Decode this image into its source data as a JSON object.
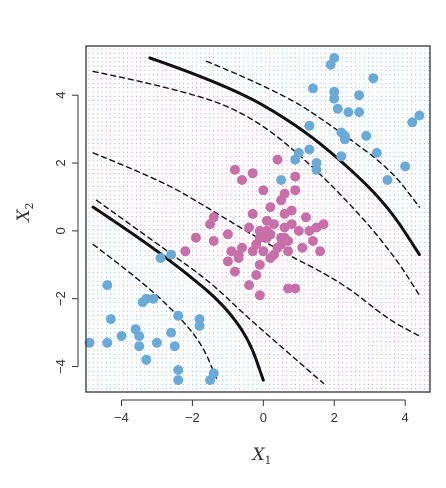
{
  "chart_data": {
    "type": "scatter",
    "title": "",
    "xlabel": "X",
    "xlabel_sub": "1",
    "ylabel": "X",
    "ylabel_sub": "2",
    "xlim": [
      -5.0,
      4.7
    ],
    "ylim": [
      -4.75,
      5.45
    ],
    "x_ticks": [
      -4,
      -2,
      0,
      2,
      4
    ],
    "y_ticks": [
      -4,
      -2,
      0,
      2,
      4
    ],
    "grid": "background dot lattice shaded by predicted class",
    "colors": {
      "blue": "#6aaad9",
      "pink": "#c86fa9",
      "line": "#111111",
      "frame": "#333333"
    },
    "series": [
      {
        "color": "blue",
        "points": [
          [
            -4.9,
            -3.3
          ],
          [
            -4.4,
            -1.6
          ],
          [
            -4.4,
            -3.3
          ],
          [
            -4.3,
            -2.6
          ],
          [
            -4.0,
            -3.1
          ],
          [
            -3.6,
            -2.9
          ],
          [
            -3.5,
            -3.1
          ],
          [
            -3.5,
            -3.4
          ],
          [
            -3.4,
            -2.1
          ],
          [
            -3.3,
            -2.0
          ],
          [
            -3.3,
            -3.8
          ],
          [
            -3.1,
            -2.0
          ],
          [
            -3.0,
            -3.3
          ],
          [
            -2.9,
            -0.8
          ],
          [
            -2.6,
            -0.7
          ],
          [
            -2.6,
            -3.0
          ],
          [
            -2.5,
            -3.4
          ],
          [
            -2.4,
            -2.5
          ],
          [
            -2.4,
            -4.1
          ],
          [
            -2.4,
            -4.4
          ],
          [
            -1.8,
            -2.6
          ],
          [
            -1.8,
            -2.8
          ],
          [
            -1.5,
            -4.4
          ],
          [
            -1.4,
            -4.2
          ],
          [
            0.5,
            1.5
          ],
          [
            0.9,
            2.1
          ],
          [
            1.0,
            2.3
          ],
          [
            1.3,
            2.4
          ],
          [
            1.3,
            3.1
          ],
          [
            1.4,
            4.2
          ],
          [
            1.5,
            2.0
          ],
          [
            1.5,
            1.8
          ],
          [
            1.9,
            4.9
          ],
          [
            2.0,
            5.1
          ],
          [
            2.0,
            3.9
          ],
          [
            2.0,
            4.1
          ],
          [
            2.1,
            3.6
          ],
          [
            2.2,
            2.9
          ],
          [
            2.2,
            2.2
          ],
          [
            2.3,
            2.7
          ],
          [
            2.3,
            2.8
          ],
          [
            2.4,
            3.5
          ],
          [
            2.7,
            3.5
          ],
          [
            2.7,
            4.0
          ],
          [
            2.9,
            2.8
          ],
          [
            3.1,
            4.5
          ],
          [
            3.2,
            2.3
          ],
          [
            3.5,
            1.5
          ],
          [
            4.0,
            1.9
          ],
          [
            4.2,
            3.2
          ],
          [
            4.4,
            3.4
          ]
        ]
      },
      {
        "color": "pink",
        "points": [
          [
            -2.2,
            -0.6
          ],
          [
            -1.9,
            -0.2
          ],
          [
            -1.5,
            0.2
          ],
          [
            -1.4,
            -0.3
          ],
          [
            -1.4,
            0.4
          ],
          [
            -1.0,
            -0.1
          ],
          [
            -1.0,
            -0.9
          ],
          [
            -0.9,
            -0.6
          ],
          [
            -0.8,
            -1.2
          ],
          [
            -0.8,
            1.8
          ],
          [
            -0.7,
            -0.8
          ],
          [
            -0.7,
            -0.7
          ],
          [
            -0.6,
            -0.5
          ],
          [
            -0.6,
            1.5
          ],
          [
            -0.4,
            -1.6
          ],
          [
            -0.4,
            0.1
          ],
          [
            -0.3,
            0.5
          ],
          [
            -0.3,
            1.7
          ],
          [
            -0.2,
            -1.3
          ],
          [
            -0.2,
            -0.4
          ],
          [
            -0.1,
            0.0
          ],
          [
            -0.1,
            -0.2
          ],
          [
            -0.1,
            -1.0
          ],
          [
            -0.1,
            -1.9
          ],
          [
            0.0,
            -0.6
          ],
          [
            0.0,
            1.2
          ],
          [
            0.1,
            -0.2
          ],
          [
            0.1,
            0.3
          ],
          [
            0.1,
            0.0
          ],
          [
            0.2,
            0.7
          ],
          [
            0.2,
            -0.1
          ],
          [
            0.2,
            -0.8
          ],
          [
            0.3,
            0.2
          ],
          [
            0.4,
            -0.5
          ],
          [
            0.4,
            2.1
          ],
          [
            0.5,
            -0.2
          ],
          [
            0.5,
            0.9
          ],
          [
            0.5,
            -0.4
          ],
          [
            0.6,
            0.1
          ],
          [
            0.6,
            -0.2
          ],
          [
            0.6,
            0.5
          ],
          [
            0.6,
            1.1
          ],
          [
            0.7,
            -0.6
          ],
          [
            0.7,
            -0.3
          ],
          [
            0.7,
            -1.7
          ],
          [
            0.8,
            0.2
          ],
          [
            0.8,
            0.6
          ],
          [
            0.9,
            -1.7
          ],
          [
            0.9,
            1.2
          ],
          [
            0.9,
            1.6
          ],
          [
            1.0,
            0.0
          ],
          [
            1.1,
            -0.5
          ],
          [
            1.2,
            0.4
          ],
          [
            1.3,
            0.0
          ],
          [
            1.4,
            -0.3
          ],
          [
            1.5,
            0.1
          ],
          [
            1.6,
            -0.6
          ],
          [
            1.7,
            0.2
          ],
          [
            0.1,
            0.0
          ],
          [
            0.3,
            -0.7
          ],
          [
            -0.3,
            -0.6
          ]
        ]
      }
    ],
    "boundaries": [
      {
        "style": "solid",
        "points": [
          [
            -3.2,
            5.1
          ],
          [
            -1.0,
            4.3
          ],
          [
            1.0,
            3.1
          ],
          [
            2.6,
            1.7
          ],
          [
            3.6,
            0.6
          ],
          [
            4.4,
            -0.7
          ]
        ]
      },
      {
        "style": "dashed",
        "points": [
          [
            -1.6,
            5.0
          ],
          [
            0.5,
            4.1
          ],
          [
            2.2,
            2.9
          ],
          [
            3.6,
            1.8
          ],
          [
            4.4,
            0.7
          ]
        ]
      },
      {
        "style": "dashed",
        "points": [
          [
            -4.8,
            4.7
          ],
          [
            -2.0,
            4.1
          ],
          [
            -0.2,
            3.3
          ],
          [
            1.4,
            1.9
          ],
          [
            2.8,
            0.4
          ],
          [
            3.8,
            -0.9
          ],
          [
            4.4,
            -1.9
          ]
        ]
      },
      {
        "style": "dashed",
        "points": [
          [
            -4.8,
            2.3
          ],
          [
            -2.9,
            1.5
          ],
          [
            -1.6,
            0.7
          ],
          [
            0.3,
            -0.5
          ],
          [
            2.2,
            -1.5
          ],
          [
            3.5,
            -2.6
          ],
          [
            4.4,
            -3.1
          ]
        ]
      },
      {
        "style": "dashed",
        "points": [
          [
            -4.7,
            0.9
          ],
          [
            -2.7,
            -0.6
          ],
          [
            -1.5,
            -1.5
          ],
          [
            -0.5,
            -2.5
          ],
          [
            0.6,
            -3.5
          ],
          [
            1.7,
            -4.5
          ]
        ]
      },
      {
        "style": "solid",
        "points": [
          [
            -4.8,
            0.7
          ],
          [
            -3.5,
            -0.2
          ],
          [
            -2.1,
            -1.3
          ],
          [
            -1.1,
            -2.2
          ],
          [
            -0.4,
            -3.2
          ],
          [
            0.0,
            -4.4
          ]
        ]
      },
      {
        "style": "dashed",
        "points": [
          [
            -4.8,
            -0.4
          ],
          [
            -3.4,
            -1.5
          ],
          [
            -2.3,
            -2.6
          ],
          [
            -1.7,
            -3.4
          ],
          [
            -1.3,
            -4.4
          ]
        ]
      }
    ],
    "background_classes": [
      {
        "color": "blue",
        "side": "upper-right",
        "boundary_points": [
          [
            -3.2,
            5.1
          ],
          [
            -1.0,
            4.3
          ],
          [
            1.0,
            3.1
          ],
          [
            2.6,
            1.7
          ],
          [
            3.6,
            0.6
          ],
          [
            4.4,
            -0.7
          ]
        ]
      },
      {
        "color": "blue",
        "side": "lower-left",
        "boundary_points": [
          [
            -4.8,
            0.7
          ],
          [
            -3.5,
            -0.2
          ],
          [
            -2.1,
            -1.3
          ],
          [
            -1.1,
            -2.2
          ],
          [
            -0.4,
            -3.2
          ],
          [
            0.0,
            -4.4
          ]
        ]
      }
    ]
  }
}
